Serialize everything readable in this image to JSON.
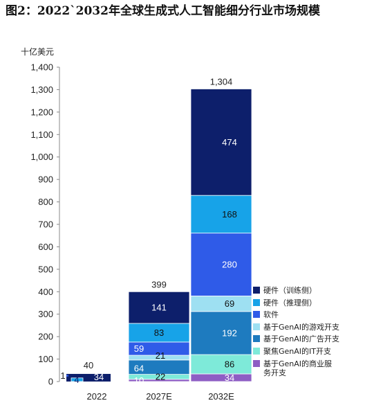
{
  "title": "图2：2022`2032年全球生成式人工智能细分行业市场规模",
  "unit": "十亿美元",
  "legend_items": [
    {
      "label": "硬件（训练侧）",
      "color": "#0d1f6b"
    },
    {
      "label": "硬件（推理侧）",
      "color": "#17a3e8"
    },
    {
      "label": "软件",
      "color": "#2f5be8"
    },
    {
      "label": "基于GenAI的游戏开支",
      "color": "#9ee0f2"
    },
    {
      "label": "基于GenAI的广告开支",
      "color": "#1e7bbf"
    },
    {
      "label": "聚焦GenAI的IT开支",
      "color": "#7eead9"
    },
    {
      "label": "基于GenAI的商业服\n务开支",
      "color": "#8e5ec4"
    }
  ],
  "chart_data": {
    "type": "bar",
    "stacked": true,
    "categories": [
      "2022",
      "2027E",
      "2032E"
    ],
    "ylim": [
      0,
      1400
    ],
    "yticks": [
      0,
      100,
      200,
      300,
      400,
      500,
      600,
      700,
      800,
      900,
      1000,
      1100,
      1200,
      1300,
      1400
    ],
    "ytick_labels": [
      "0",
      "100",
      "200",
      "300",
      "400",
      "500",
      "600",
      "700",
      "800",
      "900",
      "1,000",
      "1,100",
      "1,200",
      "1,300",
      "1,400"
    ],
    "totals": [
      "40",
      "399",
      "1,304"
    ],
    "series": [
      {
        "name": "基于GenAI的商业服务开支",
        "values": [
          null,
          10,
          34
        ],
        "labels": [
          "",
          "10",
          "34"
        ],
        "color": "#8e5ec4"
      },
      {
        "name": "聚焦GenAI的IT开支",
        "values": [
          null,
          22,
          86
        ],
        "labels": [
          "",
          "22",
          "86"
        ],
        "color": "#7eead9"
      },
      {
        "name": "基于GenAI的广告开支",
        "values": [
          null,
          64,
          192
        ],
        "labels": [
          "",
          "64",
          "192"
        ],
        "color": "#1e7bbf"
      },
      {
        "name": "基于GenAI的游戏开支",
        "values": [
          null,
          21,
          69
        ],
        "labels": [
          "",
          "21",
          "69"
        ],
        "color": "#9ee0f2"
      },
      {
        "name": "软件",
        "values": [
          1,
          59,
          280
        ],
        "labels": [
          "1",
          "59",
          "280"
        ],
        "color": "#2f5be8"
      },
      {
        "name": "硬件（推理侧）",
        "values": [
          4,
          83,
          168
        ],
        "labels": [
          "4",
          "83",
          "168"
        ],
        "color": "#17a3e8"
      },
      {
        "name": "硬件（训练侧）",
        "values": [
          34,
          141,
          474
        ],
        "labels": [
          "34",
          "141",
          "474"
        ],
        "color": "#0d1f6b"
      }
    ]
  }
}
